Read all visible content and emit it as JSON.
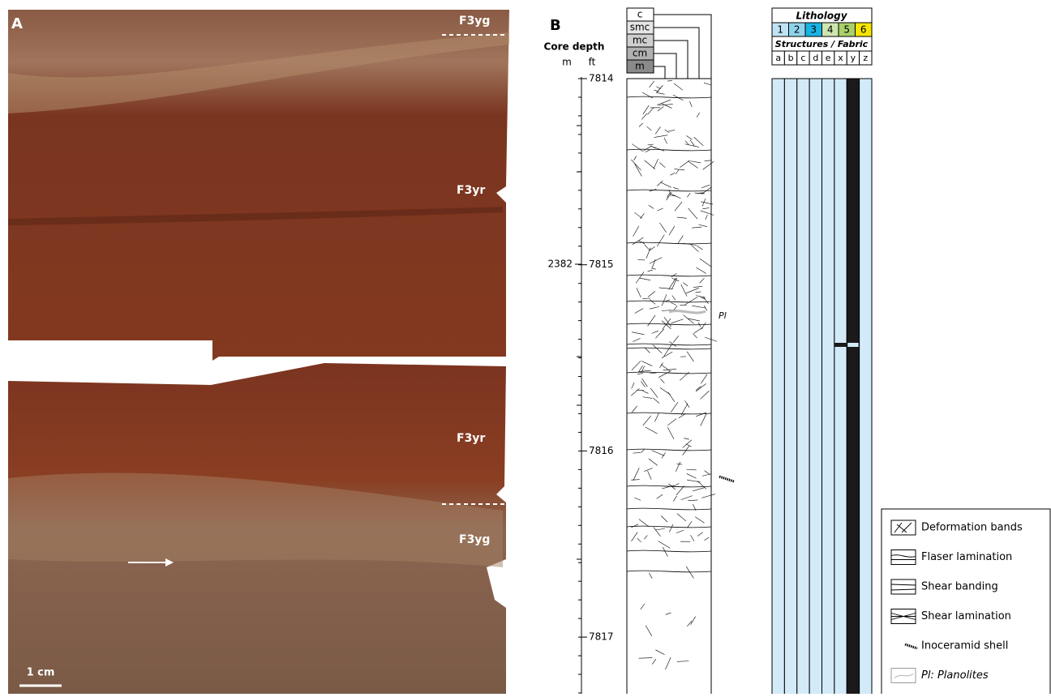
{
  "panel_a": {
    "label": "A",
    "facies_labels": [
      "F3yg",
      "F3yr",
      "F3yr",
      "F3yg"
    ],
    "scale_bar": "1 cm"
  },
  "panel_b": {
    "label": "B",
    "depth_header": {
      "title": "Core depth",
      "m": "m",
      "ft": "ft"
    },
    "ft_ticks": [
      7814,
      7815,
      7816,
      7817
    ],
    "m_ticks": [
      2382
    ],
    "grain_size": [
      "c",
      "smc",
      "mc",
      "cm",
      "m"
    ],
    "trace_label": "Pl",
    "lithology": {
      "title": "Lithology",
      "classes": [
        "1",
        "2",
        "3",
        "4",
        "5",
        "6"
      ]
    },
    "structures": {
      "title": "Structures / Fabric",
      "columns": [
        "a",
        "b",
        "c",
        "d",
        "e",
        "x",
        "y",
        "z"
      ]
    },
    "legend": [
      "Deformation bands",
      "Flaser lamination",
      "Shear banding",
      "Shear lamination",
      "Inoceramid shell",
      "Pl: Planolites"
    ]
  }
}
